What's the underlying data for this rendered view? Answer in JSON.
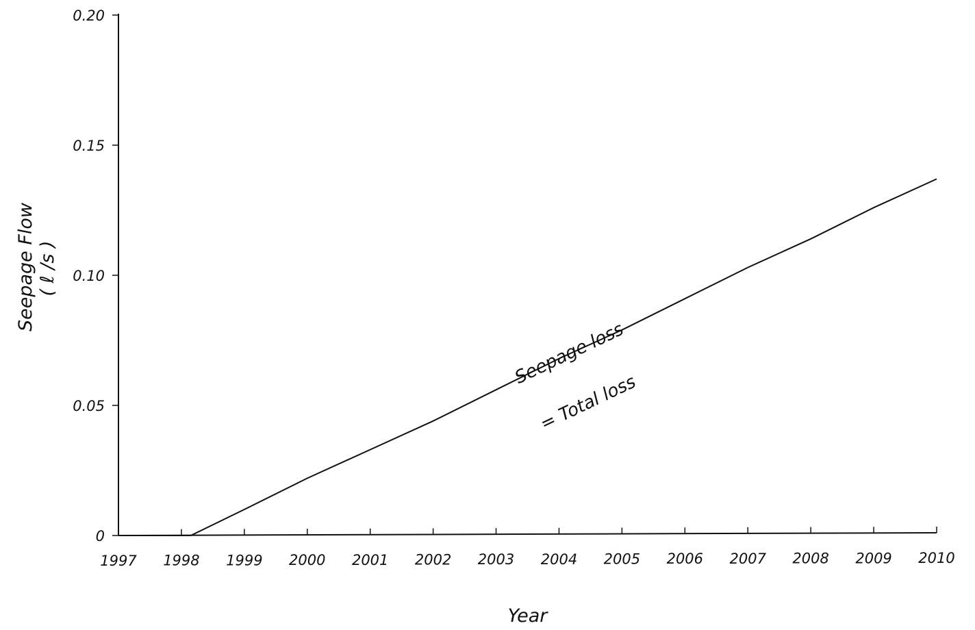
{
  "chart_data": {
    "type": "line",
    "title": "",
    "xlabel": "Year",
    "ylabel": "Seepage Flow",
    "ylabel_unit": "( ℓ /s )",
    "xlim": [
      1997,
      2010
    ],
    "ylim": [
      0,
      0.2
    ],
    "x_ticks": [
      1997,
      1998,
      1999,
      2000,
      2001,
      2002,
      2003,
      2004,
      2005,
      2006,
      2007,
      2008,
      2009,
      2010
    ],
    "x_tick_labels": [
      "1997",
      "1998",
      "1999",
      "2000",
      "2001",
      "2002",
      "2003",
      "2004",
      "2005",
      "2006",
      "2007",
      "2008",
      "2009",
      "2010"
    ],
    "y_ticks": [
      0,
      0.05,
      0.1,
      0.15,
      0.2
    ],
    "y_tick_labels": [
      "0",
      "0.05",
      "0.10",
      "0.15",
      "0.20"
    ],
    "grid": false,
    "series": [
      {
        "x": [
          1997,
          1998.15,
          1999,
          2000,
          2001,
          2002,
          2003,
          2004,
          2005,
          2006,
          2007,
          2008,
          2009,
          2010
        ],
        "y": [
          0,
          0,
          0.01,
          0.022,
          0.033,
          0.044,
          0.056,
          0.068,
          0.079,
          0.091,
          0.103,
          0.114,
          0.126,
          0.137
        ]
      }
    ],
    "annotations": [
      {
        "text": "Seepage  loss",
        "x": 2004.2,
        "y": 0.068
      },
      {
        "text": "=  Total  loss",
        "x": 2004.5,
        "y": 0.049
      }
    ]
  }
}
